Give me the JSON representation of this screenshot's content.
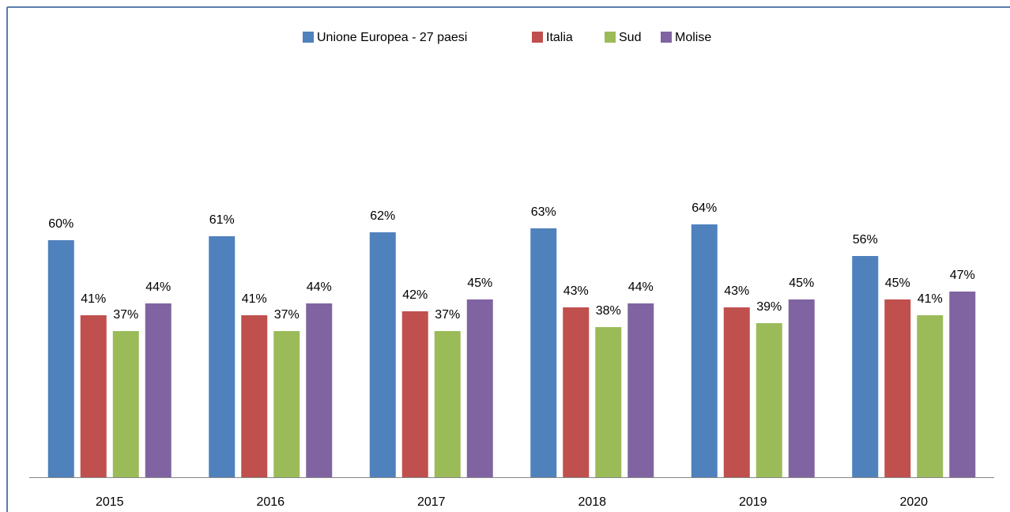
{
  "chart_data": {
    "type": "bar",
    "categories": [
      "2015",
      "2016",
      "2017",
      "2018",
      "2019",
      "2020"
    ],
    "series": [
      {
        "name": "Unione Europea - 27 paesi",
        "color": "#4f81bd",
        "values": [
          60,
          61,
          62,
          63,
          64,
          56
        ],
        "value_labels": [
          "60%",
          "61%",
          "62%",
          "63%",
          "64%",
          "56%"
        ]
      },
      {
        "name": "Italia",
        "color": "#c0504d",
        "values": [
          41,
          41,
          42,
          43,
          43,
          45
        ],
        "value_labels": [
          "41%",
          "41%",
          "42%",
          "43%",
          "43%",
          "45%"
        ]
      },
      {
        "name": "Sud",
        "color": "#9bbb59",
        "values": [
          37,
          37,
          37,
          38,
          39,
          41
        ],
        "value_labels": [
          "37%",
          "37%",
          "37%",
          "38%",
          "39%",
          "41%"
        ]
      },
      {
        "name": "Molise",
        "color": "#8064a2",
        "values": [
          44,
          44,
          45,
          44,
          45,
          47
        ],
        "value_labels": [
          "44%",
          "44%",
          "45%",
          "44%",
          "45%",
          "47%"
        ]
      }
    ],
    "ylim": [
      0,
      100
    ]
  }
}
